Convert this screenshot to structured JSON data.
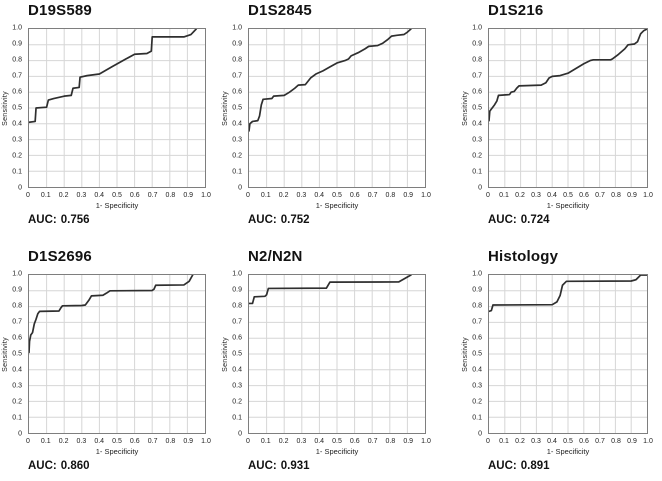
{
  "labels": {
    "auc_prefix": "AUC:"
  },
  "axes": {
    "x_ticks": [
      "0",
      "0.1",
      "0.2",
      "0.3",
      "0.4",
      "0.5",
      "0.6",
      "0.7",
      "0.8",
      "0.9",
      "1.0"
    ],
    "y_ticks": [
      "0",
      "0.1",
      "0.2",
      "0.3",
      "0.4",
      "0.5",
      "0.6",
      "0.7",
      "0.8",
      "0.9",
      "1.0"
    ],
    "xlabel": "1- Specificity",
    "ylabel": "Sensitivity",
    "grid": true,
    "legend": "none"
  },
  "chart_data": [
    {
      "type": "line",
      "title": "D19S589",
      "xlabel": "1- Specificity",
      "ylabel": "Sensitivity",
      "xlim": [
        0,
        1.0
      ],
      "ylim": [
        0,
        1.0
      ],
      "auc": "0.756",
      "points": [
        [
          0,
          0.41
        ],
        [
          0.035,
          0.415
        ],
        [
          0.04,
          0.5
        ],
        [
          0.1,
          0.505
        ],
        [
          0.11,
          0.55
        ],
        [
          0.14,
          0.56
        ],
        [
          0.2,
          0.575
        ],
        [
          0.24,
          0.58
        ],
        [
          0.25,
          0.625
        ],
        [
          0.285,
          0.63
        ],
        [
          0.29,
          0.695
        ],
        [
          0.33,
          0.705
        ],
        [
          0.4,
          0.715
        ],
        [
          0.47,
          0.76
        ],
        [
          0.55,
          0.81
        ],
        [
          0.6,
          0.84
        ],
        [
          0.67,
          0.845
        ],
        [
          0.695,
          0.86
        ],
        [
          0.7,
          0.95
        ],
        [
          0.88,
          0.95
        ],
        [
          0.92,
          0.965
        ],
        [
          0.95,
          1.0
        ]
      ]
    },
    {
      "type": "line",
      "title": "D1S2845",
      "xlabel": "1- Specificity",
      "ylabel": "Sensitivity",
      "xlim": [
        0,
        1.0
      ],
      "ylim": [
        0,
        1.0
      ],
      "auc": "0.752",
      "points": [
        [
          0,
          0.355
        ],
        [
          0.005,
          0.4
        ],
        [
          0.02,
          0.415
        ],
        [
          0.05,
          0.42
        ],
        [
          0.06,
          0.45
        ],
        [
          0.07,
          0.52
        ],
        [
          0.08,
          0.555
        ],
        [
          0.13,
          0.56
        ],
        [
          0.14,
          0.575
        ],
        [
          0.2,
          0.58
        ],
        [
          0.23,
          0.6
        ],
        [
          0.26,
          0.625
        ],
        [
          0.28,
          0.645
        ],
        [
          0.32,
          0.648
        ],
        [
          0.35,
          0.69
        ],
        [
          0.38,
          0.715
        ],
        [
          0.42,
          0.735
        ],
        [
          0.46,
          0.76
        ],
        [
          0.5,
          0.785
        ],
        [
          0.545,
          0.8
        ],
        [
          0.565,
          0.81
        ],
        [
          0.58,
          0.83
        ],
        [
          0.62,
          0.85
        ],
        [
          0.66,
          0.875
        ],
        [
          0.68,
          0.89
        ],
        [
          0.73,
          0.895
        ],
        [
          0.76,
          0.91
        ],
        [
          0.79,
          0.935
        ],
        [
          0.81,
          0.955
        ],
        [
          0.84,
          0.96
        ],
        [
          0.88,
          0.965
        ],
        [
          0.9,
          0.98
        ],
        [
          0.92,
          1.0
        ]
      ]
    },
    {
      "type": "line",
      "title": "D1S216",
      "xlabel": "1- Specificity",
      "ylabel": "Sensitivity",
      "xlim": [
        0,
        1.0
      ],
      "ylim": [
        0,
        1.0
      ],
      "auc": "0.724",
      "points": [
        [
          0,
          0.42
        ],
        [
          0.005,
          0.48
        ],
        [
          0.02,
          0.5
        ],
        [
          0.035,
          0.52
        ],
        [
          0.05,
          0.545
        ],
        [
          0.06,
          0.58
        ],
        [
          0.13,
          0.585
        ],
        [
          0.14,
          0.6
        ],
        [
          0.16,
          0.605
        ],
        [
          0.175,
          0.625
        ],
        [
          0.19,
          0.64
        ],
        [
          0.33,
          0.645
        ],
        [
          0.36,
          0.66
        ],
        [
          0.38,
          0.69
        ],
        [
          0.4,
          0.7
        ],
        [
          0.45,
          0.705
        ],
        [
          0.5,
          0.72
        ],
        [
          0.55,
          0.75
        ],
        [
          0.6,
          0.78
        ],
        [
          0.64,
          0.8
        ],
        [
          0.66,
          0.805
        ],
        [
          0.77,
          0.805
        ],
        [
          0.78,
          0.81
        ],
        [
          0.82,
          0.84
        ],
        [
          0.86,
          0.875
        ],
        [
          0.88,
          0.9
        ],
        [
          0.92,
          0.905
        ],
        [
          0.94,
          0.92
        ],
        [
          0.96,
          0.97
        ],
        [
          0.98,
          0.99
        ],
        [
          1.0,
          1.0
        ]
      ]
    },
    {
      "type": "line",
      "title": "D1S2696",
      "xlabel": "1- Specificity",
      "ylabel": "Sensitivity",
      "xlim": [
        0,
        1.0
      ],
      "ylim": [
        0,
        1.0
      ],
      "auc": "0.860",
      "points": [
        [
          0,
          0.51
        ],
        [
          0.003,
          0.58
        ],
        [
          0.01,
          0.62
        ],
        [
          0.02,
          0.635
        ],
        [
          0.03,
          0.69
        ],
        [
          0.04,
          0.72
        ],
        [
          0.05,
          0.755
        ],
        [
          0.06,
          0.77
        ],
        [
          0.17,
          0.772
        ],
        [
          0.18,
          0.79
        ],
        [
          0.19,
          0.805
        ],
        [
          0.3,
          0.807
        ],
        [
          0.32,
          0.81
        ],
        [
          0.34,
          0.84
        ],
        [
          0.355,
          0.868
        ],
        [
          0.42,
          0.872
        ],
        [
          0.44,
          0.885
        ],
        [
          0.46,
          0.9
        ],
        [
          0.7,
          0.902
        ],
        [
          0.71,
          0.91
        ],
        [
          0.72,
          0.935
        ],
        [
          0.88,
          0.937
        ],
        [
          0.91,
          0.96
        ],
        [
          0.93,
          1.0
        ]
      ]
    },
    {
      "type": "line",
      "title": "N2/N2N",
      "xlabel": "1- Specificity",
      "ylabel": "Sensitivity",
      "xlim": [
        0,
        1.0
      ],
      "ylim": [
        0,
        1.0
      ],
      "auc": "0.931",
      "points": [
        [
          0,
          0.82
        ],
        [
          0.02,
          0.82
        ],
        [
          0.03,
          0.862
        ],
        [
          0.09,
          0.865
        ],
        [
          0.1,
          0.875
        ],
        [
          0.11,
          0.915
        ],
        [
          0.44,
          0.917
        ],
        [
          0.46,
          0.955
        ],
        [
          0.85,
          0.956
        ],
        [
          0.92,
          1.0
        ]
      ]
    },
    {
      "type": "line",
      "title": "Histology",
      "xlabel": "1- Specificity",
      "ylabel": "Sensitivity",
      "xlim": [
        0,
        1.0
      ],
      "ylim": [
        0,
        1.0
      ],
      "auc": "0.891",
      "points": [
        [
          0,
          0.77
        ],
        [
          0.015,
          0.775
        ],
        [
          0.025,
          0.81
        ],
        [
          0.4,
          0.812
        ],
        [
          0.43,
          0.83
        ],
        [
          0.45,
          0.87
        ],
        [
          0.465,
          0.935
        ],
        [
          0.49,
          0.96
        ],
        [
          0.9,
          0.962
        ],
        [
          0.93,
          0.97
        ],
        [
          0.96,
          1.0
        ],
        [
          1.0,
          1.0
        ]
      ]
    }
  ]
}
